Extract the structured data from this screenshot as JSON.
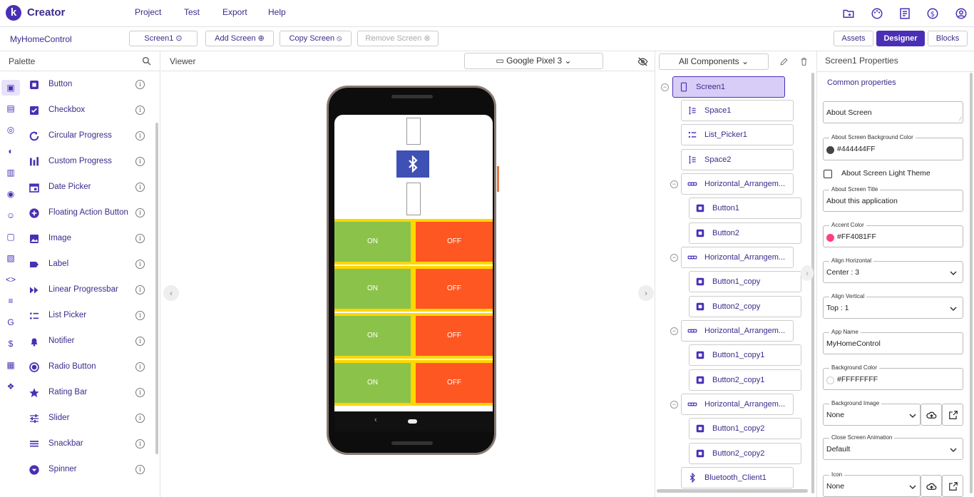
{
  "header": {
    "brand": "Creator",
    "logo_letter": "k",
    "menu": [
      "Project",
      "Test",
      "Export",
      "Help"
    ],
    "icons": [
      "folder-star-icon",
      "palette-icon",
      "book-icon",
      "dollar-icon",
      "account-icon"
    ]
  },
  "toolbar": {
    "project_name": "MyHomeControl",
    "screen_select": "Screen1",
    "add_screen": "Add Screen",
    "copy_screen": "Copy Screen",
    "remove_screen": "Remove Screen",
    "assets": "Assets",
    "designer": "Designer",
    "blocks": "Blocks"
  },
  "palette": {
    "title": "Palette",
    "items": [
      {
        "label": "Button",
        "icon": "button-icon"
      },
      {
        "label": "Checkbox",
        "icon": "checkbox-icon"
      },
      {
        "label": "Circular Progress",
        "icon": "circular-progress-icon"
      },
      {
        "label": "Custom Progress",
        "icon": "custom-progress-icon"
      },
      {
        "label": "Date Picker",
        "icon": "calendar-icon"
      },
      {
        "label": "Floating Action Button",
        "icon": "fab-icon"
      },
      {
        "label": "Image",
        "icon": "image-icon"
      },
      {
        "label": "Label",
        "icon": "label-icon"
      },
      {
        "label": "Linear Progressbar",
        "icon": "linear-progress-icon"
      },
      {
        "label": "List Picker",
        "icon": "list-picker-icon"
      },
      {
        "label": "Notifier",
        "icon": "bell-icon"
      },
      {
        "label": "Radio Button",
        "icon": "radio-icon"
      },
      {
        "label": "Rating Bar",
        "icon": "star-icon"
      },
      {
        "label": "Slider",
        "icon": "slider-icon"
      },
      {
        "label": "Snackbar",
        "icon": "snackbar-icon"
      },
      {
        "label": "Spinner",
        "icon": "spinner-icon"
      }
    ]
  },
  "viewer": {
    "title": "Viewer",
    "device": "Google Pixel 3",
    "rows": [
      {
        "on": "ON",
        "off": "OFF"
      },
      {
        "on": "ON",
        "off": "OFF"
      },
      {
        "on": "ON",
        "off": "OFF"
      },
      {
        "on": "ON",
        "off": "OFF"
      }
    ]
  },
  "components": {
    "header": "All Components",
    "nodes": [
      {
        "label": "Screen1",
        "icon": "phone-icon"
      },
      {
        "label": "Space1",
        "icon": "space-icon"
      },
      {
        "label": "List_Picker1",
        "icon": "list-picker-icon"
      },
      {
        "label": "Space2",
        "icon": "space-icon"
      },
      {
        "label": "Horizontal_Arrangem...",
        "icon": "horizontal-arrangement-icon"
      },
      {
        "label": "Button1",
        "icon": "button-icon"
      },
      {
        "label": "Button2",
        "icon": "button-icon"
      },
      {
        "label": "Horizontal_Arrangem...",
        "icon": "horizontal-arrangement-icon"
      },
      {
        "label": "Button1_copy",
        "icon": "button-icon"
      },
      {
        "label": "Button2_copy",
        "icon": "button-icon"
      },
      {
        "label": "Horizontal_Arrangem...",
        "icon": "horizontal-arrangement-icon"
      },
      {
        "label": "Button1_copy1",
        "icon": "button-icon"
      },
      {
        "label": "Button2_copy1",
        "icon": "button-icon"
      },
      {
        "label": "Horizontal_Arrangem...",
        "icon": "horizontal-arrangement-icon"
      },
      {
        "label": "Button1_copy2",
        "icon": "button-icon"
      },
      {
        "label": "Button2_copy2",
        "icon": "button-icon"
      },
      {
        "label": "Bluetooth_Client1",
        "icon": "bluetooth-icon"
      }
    ]
  },
  "properties": {
    "title": "Screen1 Properties",
    "section": "Common properties",
    "about_screen": "About Screen",
    "about_bg_label": "About Screen Background Color",
    "about_bg_value": "#444444FF",
    "light_theme": "About Screen Light Theme",
    "about_title_label": "About Screen Title",
    "about_title_value": "About this application",
    "accent_label": "Accent Color",
    "accent_value": "#FF4081FF",
    "align_h_label": "Align Horizontal",
    "align_h_value": "Center : 3",
    "align_v_label": "Align Vertical",
    "align_v_value": "Top : 1",
    "app_name_label": "App Name",
    "app_name_value": "MyHomeControl",
    "bg_color_label": "Background Color",
    "bg_color_value": "#FFFFFFFF",
    "bg_image_label": "Background Image",
    "bg_image_value": "None",
    "close_anim_label": "Close Screen Animation",
    "close_anim_value": "Default",
    "icon_label": "Icon",
    "icon_value": "None"
  },
  "colors": {
    "accent": "#4a2fb5",
    "on_button": "#8bc34a",
    "off_button": "#ff5722",
    "row_bg": "#ffd600",
    "bluetooth_tile": "#3f51b5",
    "about_bg_swatch": "#444444",
    "accent_swatch": "#ff4081"
  }
}
